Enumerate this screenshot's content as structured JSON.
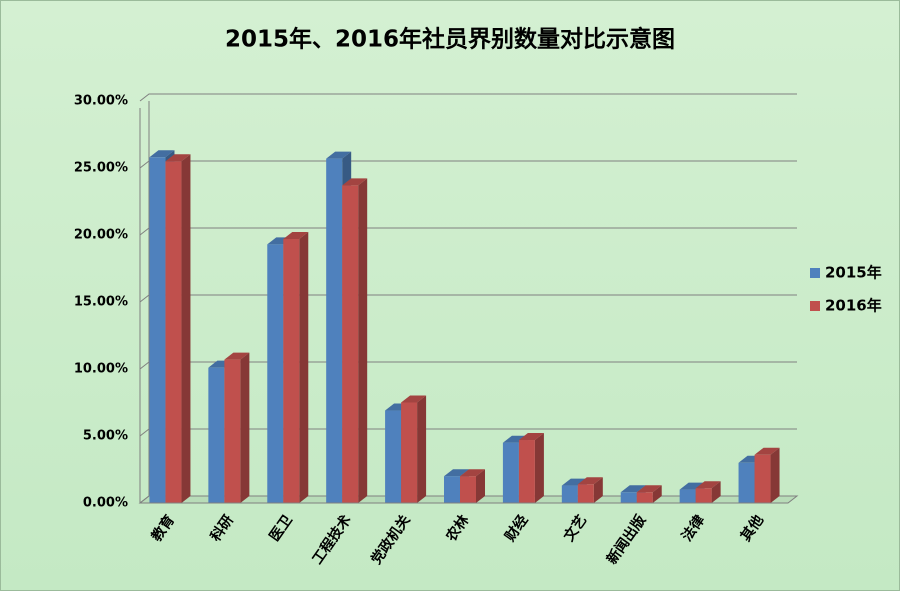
{
  "chart_data": {
    "type": "bar3d",
    "title": "2015年、2016年社员界别数量对比示意图",
    "categories": [
      "教育",
      "科研",
      "医卫",
      "工程技术",
      "党政机关",
      "农林",
      "财经",
      "文艺",
      "新闻出版",
      "法律",
      "其他"
    ],
    "series": [
      {
        "name": "2015年",
        "color": "#4f81bd",
        "values": [
          25.8,
          10.1,
          19.3,
          25.7,
          6.9,
          2.0,
          4.5,
          1.3,
          0.8,
          1.0,
          3.0
        ]
      },
      {
        "name": "2016年",
        "color": "#c0504d",
        "values": [
          25.5,
          10.7,
          19.7,
          23.7,
          7.5,
          2.0,
          4.7,
          1.4,
          0.8,
          1.1,
          3.6
        ]
      }
    ],
    "ylim": [
      0,
      30
    ],
    "yticks": [
      {
        "value": 0,
        "label": "0.00%"
      },
      {
        "value": 5,
        "label": "5.00%"
      },
      {
        "value": 10,
        "label": "10.00%"
      },
      {
        "value": 15,
        "label": "15.00%"
      },
      {
        "value": 20,
        "label": "20.00%"
      },
      {
        "value": 25,
        "label": "25.00%"
      },
      {
        "value": 30,
        "label": "30.00%"
      }
    ],
    "grid": true,
    "legend": "right"
  }
}
